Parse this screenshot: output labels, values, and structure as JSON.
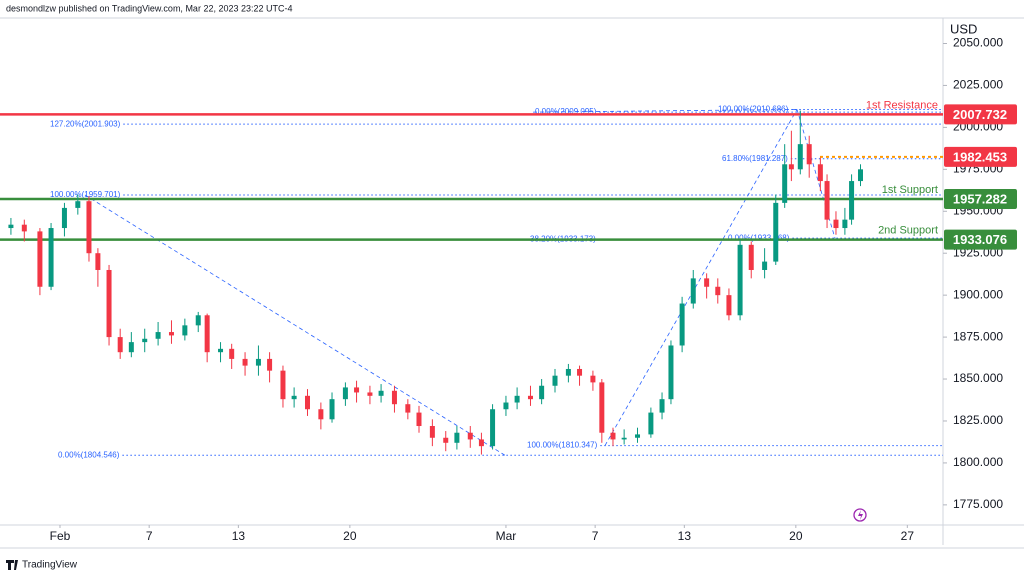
{
  "header": "desmondlzw published on TradingView.com, Mar 22, 2023 23:22 UTC-4",
  "footer": "TradingView",
  "chart_data": {
    "type": "candlestick",
    "currency": "USD",
    "up_color": "#089981",
    "down_color": "#f23645",
    "xlim": [
      -2.69,
      39.6
    ],
    "xticks": [
      {
        "value": 0,
        "label": "Feb"
      },
      {
        "value": 4,
        "label": "7"
      },
      {
        "value": 8,
        "label": "13"
      },
      {
        "value": 13,
        "label": "20"
      },
      {
        "value": 20,
        "label": "Mar"
      },
      {
        "value": 24,
        "label": "7"
      },
      {
        "value": 28,
        "label": "13"
      },
      {
        "value": 33,
        "label": "20"
      },
      {
        "value": 38,
        "label": "27"
      }
    ],
    "ylim": [
      1763,
      2064
    ],
    "yticks": [
      {
        "value": 1775,
        "label": "1775.000"
      },
      {
        "value": 1800,
        "label": "1800.000"
      },
      {
        "value": 1825,
        "label": "1825.000"
      },
      {
        "value": 1850,
        "label": "1850.000"
      },
      {
        "value": 1875,
        "label": "1875.000"
      },
      {
        "value": 1900,
        "label": "1900.000"
      },
      {
        "value": 1925,
        "label": "1925.000"
      },
      {
        "value": 1950,
        "label": "1950.000"
      },
      {
        "value": 1975,
        "label": "1975.000"
      },
      {
        "value": 2000,
        "label": "2000.000"
      },
      {
        "value": 2025,
        "label": "2025.000"
      },
      {
        "value": 2050,
        "label": "2050.000"
      }
    ],
    "x": [
      -2.2,
      -1.6,
      -0.9,
      -0.4,
      0.2,
      0.8,
      1.3,
      1.7,
      2.2,
      2.7,
      3.2,
      3.8,
      4.4,
      5.0,
      5.6,
      6.2,
      6.6,
      7.2,
      7.7,
      8.3,
      8.9,
      9.4,
      10.0,
      10.5,
      11.1,
      11.7,
      12.2,
      12.8,
      13.3,
      13.9,
      14.4,
      15.0,
      15.6,
      16.1,
      16.7,
      17.3,
      17.8,
      18.4,
      18.9,
      19.4,
      20.0,
      20.5,
      21.1,
      21.6,
      22.2,
      22.8,
      23.3,
      23.9,
      24.3,
      24.8,
      25.3,
      25.9,
      26.5,
      27.0,
      27.4,
      27.9,
      28.4,
      29.0,
      29.5,
      30.0,
      30.5,
      31.0,
      31.6,
      32.1,
      32.5,
      32.8,
      33.2,
      33.6,
      34.1,
      34.4,
      34.8,
      35.2,
      35.5,
      35.9
    ],
    "open": [
      1940,
      1942,
      1938,
      1905,
      1940,
      1952,
      1956,
      1925,
      1915,
      1875,
      1866,
      1872,
      1874,
      1878,
      1876,
      1882,
      1888,
      1866,
      1868,
      1862,
      1858,
      1862,
      1855,
      1838,
      1840,
      1832,
      1826,
      1838,
      1845,
      1842,
      1840,
      1843,
      1835,
      1830,
      1822,
      1815,
      1812,
      1818,
      1814,
      1810,
      1832,
      1836,
      1840,
      1838,
      1846,
      1852,
      1856,
      1852,
      1848,
      1818,
      1814,
      1815,
      1817,
      1830,
      1838,
      1870,
      1895,
      1910,
      1905,
      1900,
      1888,
      1930,
      1915,
      1920,
      1955,
      1978,
      1975,
      1990,
      1978,
      1968,
      1945,
      1940,
      1945,
      1968
    ],
    "high": [
      1946,
      1945,
      1940,
      1943,
      1955,
      1960,
      1959,
      1928,
      1918,
      1880,
      1878,
      1880,
      1884,
      1885,
      1886,
      1890,
      1889,
      1872,
      1871,
      1866,
      1870,
      1866,
      1858,
      1845,
      1844,
      1836,
      1842,
      1848,
      1849,
      1846,
      1847,
      1846,
      1838,
      1834,
      1826,
      1819,
      1822,
      1822,
      1818,
      1835,
      1840,
      1845,
      1846,
      1850,
      1856,
      1859,
      1858,
      1855,
      1850,
      1821,
      1820,
      1821,
      1833,
      1842,
      1873,
      1899,
      1915,
      1913,
      1910,
      1904,
      1933,
      1932,
      1928,
      1960,
      1990,
      1998,
      2010,
      1995,
      1982,
      1972,
      1950,
      1952,
      1972,
      1978
    ],
    "low": [
      1936,
      1932,
      1900,
      1903,
      1935,
      1948,
      1920,
      1905,
      1870,
      1862,
      1863,
      1866,
      1870,
      1871,
      1873,
      1878,
      1860,
      1860,
      1856,
      1852,
      1852,
      1848,
      1833,
      1833,
      1828,
      1820,
      1824,
      1834,
      1836,
      1835,
      1836,
      1830,
      1826,
      1818,
      1810,
      1807,
      1808,
      1809,
      1805,
      1808,
      1828,
      1832,
      1834,
      1835,
      1842,
      1848,
      1846,
      1843,
      1812,
      1810,
      1811,
      1812,
      1815,
      1826,
      1835,
      1866,
      1892,
      1898,
      1895,
      1885,
      1885,
      1910,
      1910,
      1918,
      1952,
      1968,
      1972,
      1970,
      1962,
      1940,
      1936,
      1936,
      1942,
      1965
    ],
    "close": [
      1942,
      1938,
      1905,
      1940,
      1952,
      1956,
      1925,
      1915,
      1875,
      1866,
      1872,
      1874,
      1878,
      1876,
      1882,
      1888,
      1866,
      1868,
      1862,
      1858,
      1862,
      1855,
      1838,
      1840,
      1832,
      1826,
      1838,
      1845,
      1842,
      1840,
      1843,
      1835,
      1830,
      1822,
      1815,
      1812,
      1818,
      1814,
      1810,
      1832,
      1836,
      1840,
      1838,
      1846,
      1852,
      1856,
      1852,
      1848,
      1818,
      1814,
      1815,
      1817,
      1830,
      1838,
      1870,
      1895,
      1910,
      1905,
      1900,
      1888,
      1930,
      1915,
      1920,
      1955,
      1978,
      1975,
      1990,
      1978,
      1968,
      1945,
      1940,
      1945,
      1968,
      1975
    ],
    "levels": [
      {
        "name": "1st Resistance",
        "value": 2007.732,
        "color": "#f23645"
      },
      {
        "value": 1982.453,
        "color": "#f23645"
      },
      {
        "name": "1st Support",
        "value": 1957.282,
        "color": "#388e3c"
      },
      {
        "name": "2nd Support",
        "value": 1933.076,
        "color": "#388e3c"
      }
    ],
    "fib_levels": [
      {
        "value": 2009.095,
        "label": "0.00%(2009.095)"
      },
      {
        "value": 2010.686,
        "label": "100.00%(2010.686)"
      },
      {
        "value": 2001.903,
        "label": "127.20%(2001.903)"
      },
      {
        "value": 1981.287,
        "label": "61.80%(1981.287)"
      },
      {
        "value": 1959.701,
        "label": "100.00%(1959.701)"
      },
      {
        "value": 1933.173,
        "label": "38.20%(1933.173)"
      },
      {
        "value": 1933.968,
        "label": "0.00%(1933.968)"
      },
      {
        "value": 1810.347,
        "label": "100.00%(1810.347)"
      },
      {
        "value": 1804.546,
        "label": "0.00%(1804.546)"
      }
    ]
  }
}
